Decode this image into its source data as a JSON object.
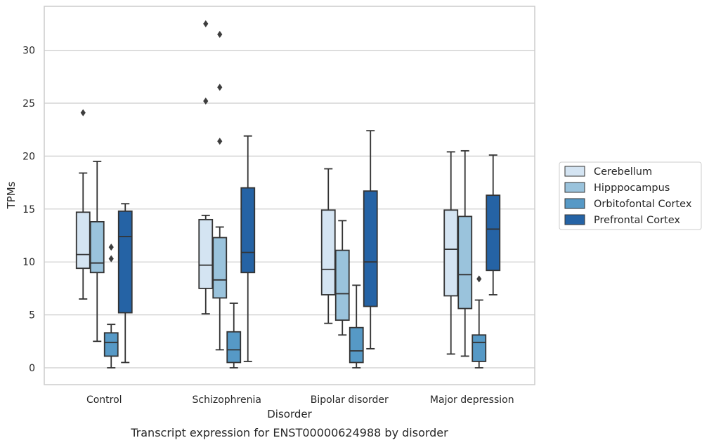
{
  "chart_data": {
    "type": "box",
    "title": "",
    "caption": "Transcript expression for ENST00000624988 by disorder",
    "xlabel": "Disorder",
    "ylabel": "TPMs",
    "ylim": [
      -1.6,
      34.2
    ],
    "yticks": [
      "0",
      "5",
      "10",
      "15",
      "20",
      "25",
      "30"
    ],
    "grid": "horizontal",
    "legend_position": "right",
    "categories": [
      "Control",
      "Schizophrenia",
      "Bipolar disorder",
      "Major depression"
    ],
    "series": [
      {
        "name": "Cerebellum",
        "color": "#d4e4f2",
        "boxes": [
          {
            "whisker_low": 6.5,
            "q1": 9.4,
            "median": 10.7,
            "q3": 14.7,
            "whisker_high": 18.4,
            "fliers": [
              24.1
            ]
          },
          {
            "whisker_low": 5.1,
            "q1": 7.5,
            "median": 9.7,
            "q3": 14.0,
            "whisker_high": 14.4,
            "fliers": [
              25.2,
              32.5
            ]
          },
          {
            "whisker_low": 4.2,
            "q1": 6.9,
            "median": 9.3,
            "q3": 14.9,
            "whisker_high": 18.8,
            "fliers": []
          },
          {
            "whisker_low": 1.3,
            "q1": 6.8,
            "median": 11.2,
            "q3": 14.9,
            "whisker_high": 20.4,
            "fliers": []
          }
        ]
      },
      {
        "name": "Hipppocampus",
        "color": "#9ac3dc",
        "boxes": [
          {
            "whisker_low": 2.5,
            "q1": 9.0,
            "median": 9.9,
            "q3": 13.8,
            "whisker_high": 19.5,
            "fliers": []
          },
          {
            "whisker_low": 1.7,
            "q1": 6.6,
            "median": 8.3,
            "q3": 12.3,
            "whisker_high": 13.3,
            "fliers": [
              21.4,
              26.5,
              31.5
            ]
          },
          {
            "whisker_low": 3.1,
            "q1": 4.5,
            "median": 7.0,
            "q3": 11.1,
            "whisker_high": 13.9,
            "fliers": []
          },
          {
            "whisker_low": 1.1,
            "q1": 5.6,
            "median": 8.8,
            "q3": 14.3,
            "whisker_high": 20.5,
            "fliers": []
          }
        ]
      },
      {
        "name": "Orbitofontal Cortex",
        "color": "#5699c6",
        "boxes": [
          {
            "whisker_low": 0.0,
            "q1": 1.1,
            "median": 2.4,
            "q3": 3.3,
            "whisker_high": 4.1,
            "fliers": [
              10.3,
              11.4
            ]
          },
          {
            "whisker_low": 0.0,
            "q1": 0.5,
            "median": 1.7,
            "q3": 3.4,
            "whisker_high": 6.1,
            "fliers": []
          },
          {
            "whisker_low": 0.0,
            "q1": 0.5,
            "median": 1.6,
            "q3": 3.8,
            "whisker_high": 7.8,
            "fliers": []
          },
          {
            "whisker_low": 0.0,
            "q1": 0.6,
            "median": 2.4,
            "q3": 3.1,
            "whisker_high": 6.4,
            "fliers": [
              8.4
            ]
          }
        ]
      },
      {
        "name": "Prefrontal Cortex",
        "color": "#2563a5",
        "boxes": [
          {
            "whisker_low": 0.5,
            "q1": 5.2,
            "median": 12.4,
            "q3": 14.8,
            "whisker_high": 15.5,
            "fliers": []
          },
          {
            "whisker_low": 0.6,
            "q1": 9.0,
            "median": 10.9,
            "q3": 17.0,
            "whisker_high": 21.9,
            "fliers": []
          },
          {
            "whisker_low": 1.8,
            "q1": 5.8,
            "median": 10.0,
            "q3": 16.7,
            "whisker_high": 22.4,
            "fliers": []
          },
          {
            "whisker_low": 6.9,
            "q1": 9.2,
            "median": 13.1,
            "q3": 16.3,
            "whisker_high": 20.1,
            "fliers": []
          }
        ]
      }
    ]
  },
  "colors": {
    "grid": "#cccccc",
    "frame": "#cccccc",
    "box_edge": "#333333",
    "text": "#262626"
  }
}
